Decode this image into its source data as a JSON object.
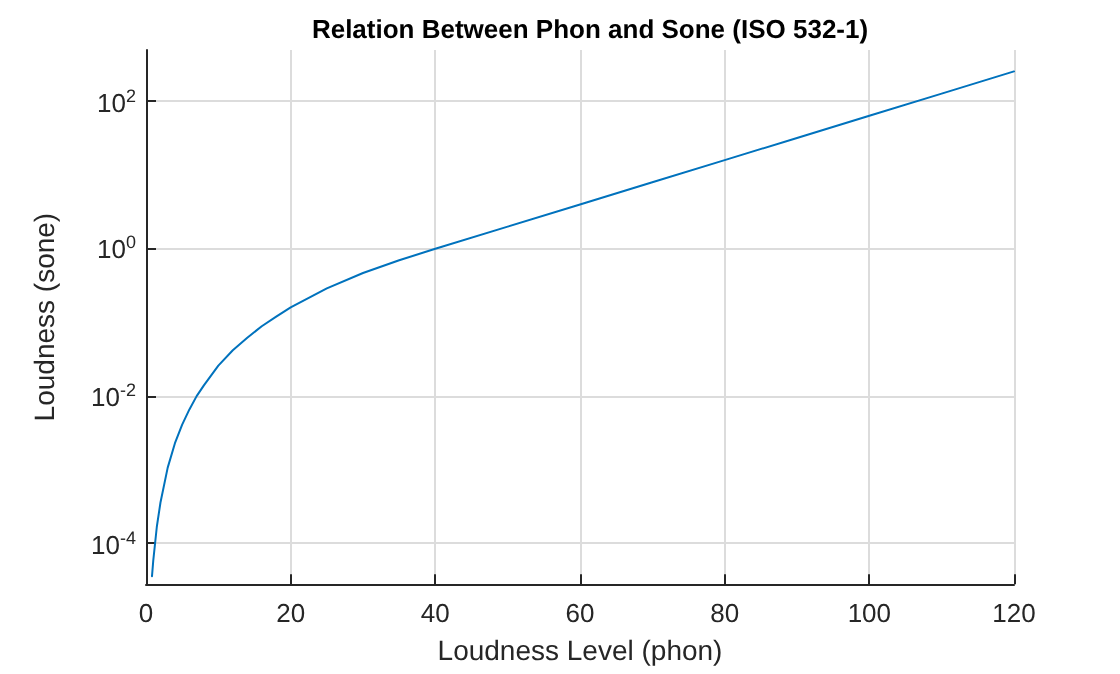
{
  "chart_data": {
    "type": "line",
    "title": "Relation Between Phon and Sone (ISO 532-1)",
    "xlabel": "Loudness Level (phon)",
    "ylabel": "Loudness (sone)",
    "x": [
      0.83,
      1,
      1.5,
      2,
      3,
      4,
      5,
      6,
      7,
      8,
      10,
      12,
      14,
      16,
      18,
      20,
      25,
      30,
      35,
      40,
      50,
      60,
      70,
      80,
      90,
      100,
      110,
      120
    ],
    "series": [
      {
        "color": "#0072bd",
        "values": [
          3.6e-05,
          5.8e-05,
          0.00017,
          0.00036,
          0.00107,
          0.0023,
          0.0041,
          0.0066,
          0.01,
          0.014,
          0.026,
          0.042,
          0.062,
          0.089,
          0.12,
          0.16,
          0.29,
          0.47,
          0.7,
          1,
          2,
          4,
          8,
          16,
          32,
          64,
          128,
          256
        ]
      }
    ],
    "xlim": [
      0,
      120
    ],
    "xticks": [
      0,
      20,
      40,
      60,
      80,
      100,
      120
    ],
    "ylim": [
      2.8e-05,
      500
    ],
    "yticks": [
      {
        "value": 0.0001,
        "label": "10$^{-4}$"
      },
      {
        "value": 0.01,
        "label": "10$^{-2}$"
      },
      {
        "value": 1,
        "label": "10$^{0}$"
      },
      {
        "value": 100,
        "label": "10$^{2}$"
      }
    ],
    "log": "y",
    "grid": true,
    "marker": "none",
    "line_style": "solid"
  }
}
